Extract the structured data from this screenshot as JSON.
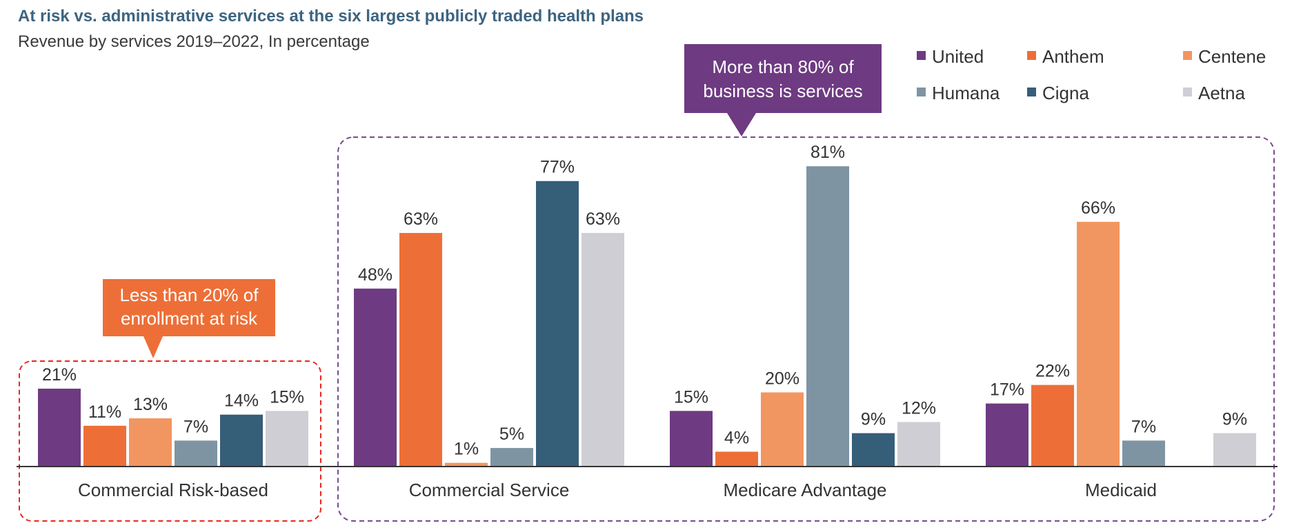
{
  "title": "At risk vs. administrative services at the six largest publicly traded health plans",
  "subtitle": "Revenue by services 2019–2022, In percentage",
  "callouts": {
    "risk": [
      "Less than 20% of",
      "enrollment at risk"
    ],
    "services": [
      "More than 80% of",
      "business is services"
    ]
  },
  "chart_data": {
    "type": "bar",
    "title": "At risk vs. administrative services at the six largest publicly traded health plans",
    "subtitle": "Revenue by services 2019–2022, In percentage",
    "categories": [
      "Commercial Risk-based",
      "Commercial Service",
      "Medicare Advantage",
      "Medicaid"
    ],
    "ylim": [
      0,
      85
    ],
    "grid": false,
    "legend_position": "top-right",
    "series": [
      {
        "name": "United",
        "color": "#6e3a82",
        "values": [
          21,
          48,
          15,
          17
        ]
      },
      {
        "name": "Anthem",
        "color": "#ed6f37",
        "values": [
          11,
          63,
          4,
          22
        ]
      },
      {
        "name": "Centene",
        "color": "#f29661",
        "values": [
          13,
          1,
          20,
          66
        ]
      },
      {
        "name": "Humana",
        "color": "#7f94a3",
        "values": [
          7,
          5,
          81,
          7
        ]
      },
      {
        "name": "Cigna",
        "color": "#355e79",
        "values": [
          14,
          77,
          9,
          null
        ]
      },
      {
        "name": "Aetna",
        "color": "#cfced4",
        "values": [
          15,
          63,
          12,
          9
        ]
      }
    ],
    "data_labels": [
      [
        "21%",
        "11%",
        "13%",
        "7%",
        "14%",
        "15%"
      ],
      [
        "48%",
        "63%",
        "1%",
        "5%",
        "77%",
        "63%"
      ],
      [
        "15%",
        "4%",
        "20%",
        "81%",
        "9%",
        "12%"
      ],
      [
        "17%",
        "22%",
        "66%",
        "7%",
        "",
        "9%"
      ]
    ]
  },
  "colors": {
    "risk_callout": "#ed6f37",
    "services_callout": "#6e3a82",
    "risk_box_border": "#e8271f",
    "services_box_border": "#7a4a8e",
    "axis": "#333333"
  }
}
